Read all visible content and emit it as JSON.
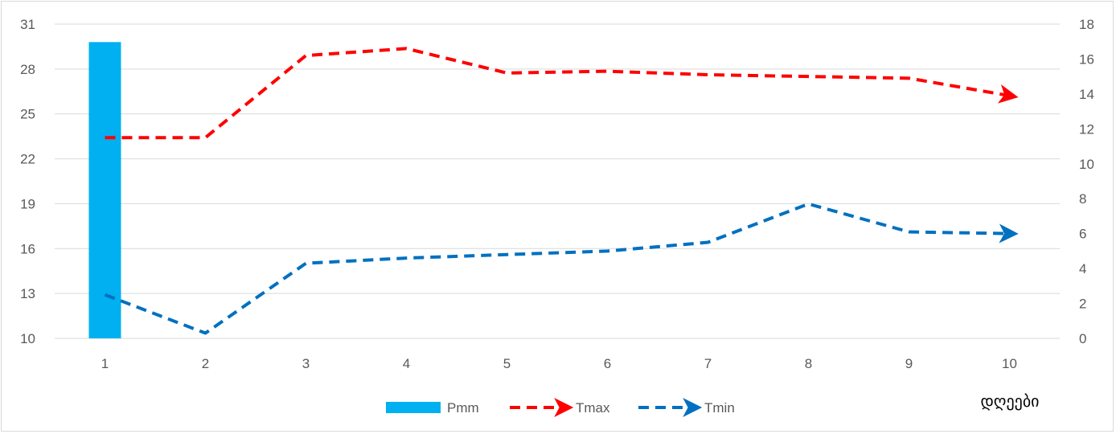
{
  "chart_data": {
    "type": "bar+line",
    "categories": [
      "1",
      "2",
      "3",
      "4",
      "5",
      "6",
      "7",
      "8",
      "9",
      "10"
    ],
    "xlabel": "დღეები",
    "y_left": {
      "min": 10,
      "max": 31,
      "ticks": [
        10,
        13,
        16,
        19,
        22,
        25,
        28,
        31
      ]
    },
    "y_right": {
      "min": 0,
      "max": 18,
      "ticks": [
        0,
        2,
        4,
        6,
        8,
        10,
        12,
        14,
        16,
        18
      ]
    },
    "grid": true,
    "legend_position": "bottom",
    "series": [
      {
        "name": "Pmm",
        "kind": "bar",
        "axis": "left",
        "color": "#00b0f0",
        "values": [
          29.8,
          null,
          null,
          null,
          null,
          null,
          null,
          null,
          null,
          null
        ]
      },
      {
        "name": "Tmax",
        "kind": "line",
        "style": "dashed-arrow",
        "axis": "right",
        "color": "#ff0000",
        "values": [
          11.5,
          11.5,
          16.2,
          16.6,
          15.2,
          15.3,
          15.1,
          15.0,
          14.9,
          13.9
        ]
      },
      {
        "name": "Tmin",
        "kind": "line",
        "style": "dashed-arrow",
        "axis": "right",
        "color": "#0070c0",
        "values": [
          2.5,
          0.3,
          4.3,
          4.6,
          4.8,
          5.0,
          5.5,
          7.7,
          6.1,
          6.0
        ]
      }
    ]
  }
}
